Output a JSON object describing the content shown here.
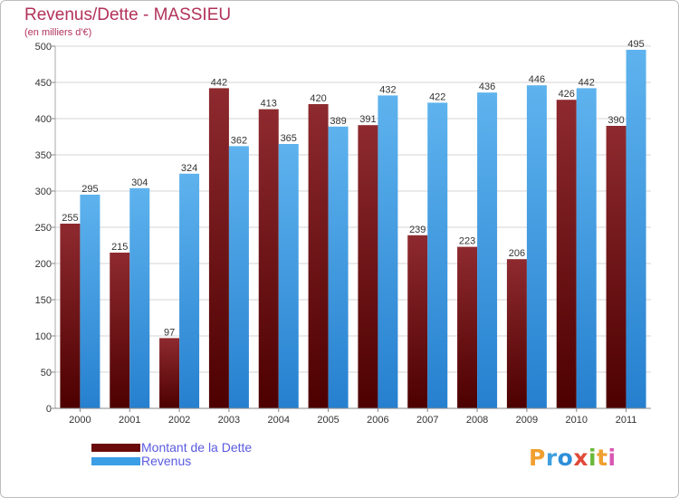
{
  "header": {
    "title": "Revenus/Dette - MASSIEU",
    "subtitle": "(en milliers d'€)"
  },
  "legend": {
    "items": [
      {
        "label": "Montant de la Dette",
        "color": "#6b0a0a"
      },
      {
        "label": "Revenus",
        "color": "#3b9ee6"
      }
    ]
  },
  "logo": {
    "letters": [
      "P",
      "r",
      "o",
      "x",
      "i",
      "t",
      "i"
    ],
    "colors": [
      "#f0a030",
      "#3f9fe0",
      "#2e8fd8",
      "#e04a3a",
      "#6bb83a",
      "#f0a030",
      "#d858b0"
    ]
  },
  "chart_data": {
    "type": "bar",
    "categories": [
      "2000",
      "2001",
      "2002",
      "2003",
      "2004",
      "2005",
      "2006",
      "2007",
      "2008",
      "2009",
      "2010",
      "2011"
    ],
    "series": [
      {
        "name": "Montant de la Dette",
        "values": [
          255,
          215,
          97,
          442,
          413,
          420,
          391,
          239,
          223,
          206,
          426,
          390
        ],
        "color_light": "#8e2a2f",
        "color_dark": "#4d0000"
      },
      {
        "name": "Revenus",
        "values": [
          295,
          304,
          324,
          362,
          365,
          389,
          432,
          422,
          436,
          446,
          442,
          495
        ],
        "color_light": "#5eb3ee",
        "color_dark": "#2680cf"
      }
    ],
    "ylim": [
      0,
      500
    ],
    "yticks": [
      0,
      50,
      100,
      150,
      200,
      250,
      300,
      350,
      400,
      450,
      500
    ],
    "grid": true
  }
}
